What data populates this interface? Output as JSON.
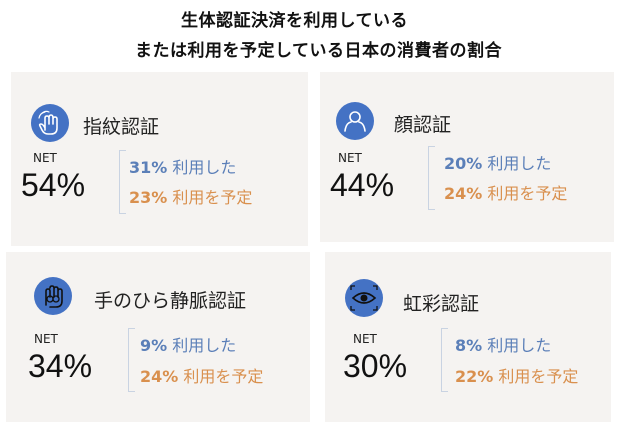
{
  "title_line1": "生体認証決済を利用している",
  "title_line2": "または利用を予定している日本の消費者の割合",
  "net_label": "NET",
  "used_suffix": "利用した",
  "plan_suffix": "利用を予定",
  "colors": {
    "used": "#5b7fb8",
    "plan": "#d9904e",
    "icon_bg": "#4472c4",
    "card_bg": "#f5f3f1"
  },
  "chart_data": {
    "type": "table",
    "title": "生体認証決済を利用している または利用を予定している日本の消費者の割合",
    "categories": [
      "指紋認証",
      "顔認証",
      "手のひら静脈認証",
      "虹彩認証"
    ],
    "series": [
      {
        "name": "NET",
        "values": [
          54,
          44,
          34,
          30
        ]
      },
      {
        "name": "利用した",
        "values": [
          31,
          20,
          9,
          8
        ]
      },
      {
        "name": "利用を予定",
        "values": [
          23,
          24,
          24,
          22
        ]
      }
    ],
    "cards": [
      {
        "label": "指紋認証",
        "icon": "fingerprint-hand-icon",
        "net": "54%",
        "used": "31%",
        "plan": "23%"
      },
      {
        "label": "顔認証",
        "icon": "face-icon",
        "net": "44%",
        "used": "20%",
        "plan": "24%"
      },
      {
        "label": "手のひら静脈認証",
        "icon": "palm-vein-icon",
        "net": "34%",
        "used": "9%",
        "plan": "24%"
      },
      {
        "label": "虹彩認証",
        "icon": "iris-eye-icon",
        "net": "30%",
        "used": "8%",
        "plan": "22%"
      }
    ]
  }
}
